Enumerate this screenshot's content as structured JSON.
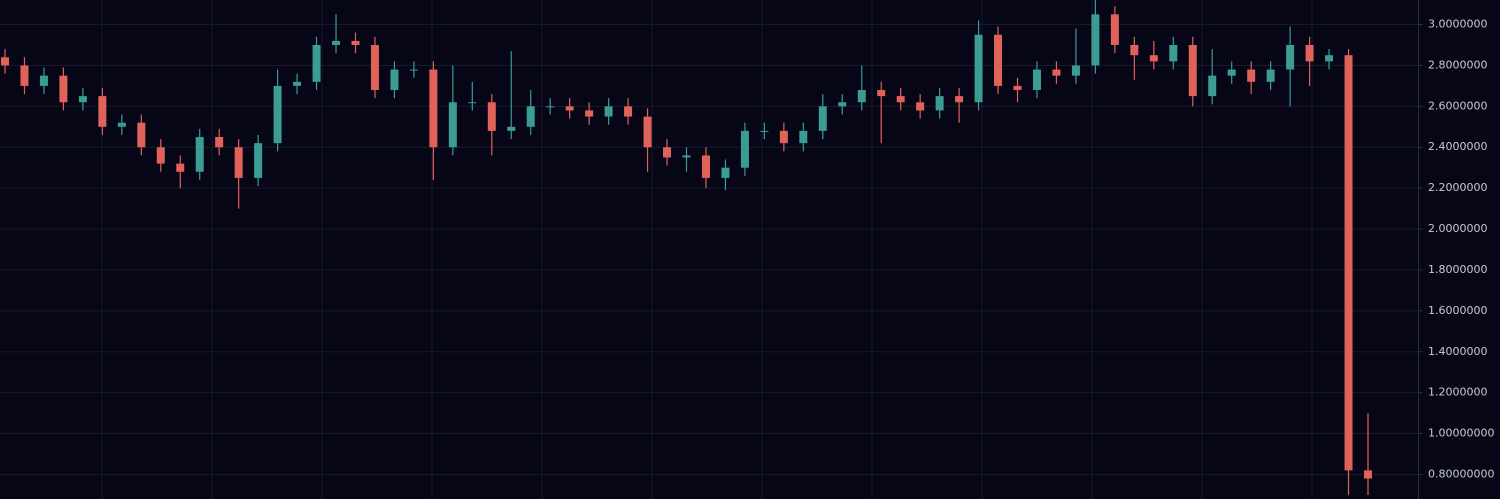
{
  "chart_data": {
    "type": "candlestick",
    "up_color": "#3b9c93",
    "down_color": "#e0625b",
    "grid": true,
    "ylim": [
      0.68,
      3.12
    ],
    "yticks": [
      {
        "value": 0.8,
        "label": "0.80000000"
      },
      {
        "value": 1.0,
        "label": "1.00000000"
      },
      {
        "value": 1.2,
        "label": "1.2000000"
      },
      {
        "value": 1.4,
        "label": "1.4000000"
      },
      {
        "value": 1.6,
        "label": "1.6000000"
      },
      {
        "value": 1.8,
        "label": "1.8000000"
      },
      {
        "value": 2.0,
        "label": "2.0000000"
      },
      {
        "value": 2.2,
        "label": "2.2000000"
      },
      {
        "value": 2.4,
        "label": "2.4000000"
      },
      {
        "value": 2.6,
        "label": "2.6000000"
      },
      {
        "value": 2.8,
        "label": "2.8000000"
      },
      {
        "value": 3.0,
        "label": "3.0000000"
      }
    ],
    "open": [
      2.84,
      2.8,
      2.7,
      2.75,
      2.62,
      2.65,
      2.5,
      2.52,
      2.4,
      2.32,
      2.28,
      2.45,
      2.4,
      2.25,
      2.42,
      2.7,
      2.72,
      2.9,
      2.92,
      2.9,
      2.68,
      2.78,
      2.78,
      2.4,
      2.62,
      2.62,
      2.48,
      2.5,
      2.6,
      2.6,
      2.58,
      2.55,
      2.6,
      2.55,
      2.4,
      2.35,
      2.36,
      2.25,
      2.3,
      2.48,
      2.48,
      2.42,
      2.48,
      2.6,
      2.62,
      2.68,
      2.65,
      2.62,
      2.58,
      2.65,
      2.62,
      2.95,
      2.7,
      2.68,
      2.78,
      2.75,
      2.8,
      3.05,
      2.9,
      2.85,
      2.82,
      2.9,
      2.65,
      2.75,
      2.78,
      2.72,
      2.78,
      2.9,
      2.82,
      2.85,
      0.82
    ],
    "high": [
      2.88,
      2.84,
      2.79,
      2.79,
      2.69,
      2.69,
      2.56,
      2.56,
      2.44,
      2.36,
      2.49,
      2.49,
      2.44,
      2.46,
      2.78,
      2.76,
      2.94,
      3.05,
      2.96,
      2.94,
      2.82,
      2.82,
      2.82,
      2.8,
      2.72,
      2.66,
      2.87,
      2.68,
      2.64,
      2.64,
      2.62,
      2.64,
      2.64,
      2.59,
      2.44,
      2.4,
      2.4,
      2.34,
      2.52,
      2.52,
      2.52,
      2.52,
      2.66,
      2.66,
      2.8,
      2.72,
      2.69,
      2.66,
      2.69,
      2.69,
      3.02,
      2.99,
      2.74,
      2.82,
      2.82,
      2.98,
      3.12,
      3.09,
      2.94,
      2.92,
      2.94,
      2.94,
      2.88,
      2.82,
      2.82,
      2.82,
      2.99,
      2.94,
      2.88,
      2.88,
      1.1
    ],
    "low": [
      2.76,
      2.66,
      2.66,
      2.58,
      2.58,
      2.46,
      2.46,
      2.36,
      2.28,
      2.2,
      2.24,
      2.36,
      2.1,
      2.21,
      2.38,
      2.66,
      2.68,
      2.86,
      2.86,
      2.64,
      2.64,
      2.74,
      2.24,
      2.36,
      2.58,
      2.36,
      2.44,
      2.46,
      2.56,
      2.54,
      2.51,
      2.51,
      2.51,
      2.28,
      2.31,
      2.28,
      2.2,
      2.19,
      2.26,
      2.44,
      2.38,
      2.38,
      2.44,
      2.56,
      2.58,
      2.42,
      2.58,
      2.54,
      2.54,
      2.52,
      2.58,
      2.66,
      2.62,
      2.64,
      2.71,
      2.71,
      2.76,
      2.86,
      2.73,
      2.78,
      2.78,
      2.6,
      2.61,
      2.71,
      2.66,
      2.68,
      2.6,
      2.7,
      2.78,
      0.7,
      0.7
    ],
    "close": [
      2.8,
      2.7,
      2.75,
      2.62,
      2.65,
      2.5,
      2.52,
      2.4,
      2.32,
      2.28,
      2.45,
      2.4,
      2.25,
      2.42,
      2.7,
      2.72,
      2.9,
      2.92,
      2.9,
      2.68,
      2.78,
      2.78,
      2.4,
      2.62,
      2.62,
      2.48,
      2.5,
      2.6,
      2.6,
      2.58,
      2.55,
      2.6,
      2.55,
      2.4,
      2.35,
      2.36,
      2.25,
      2.3,
      2.48,
      2.48,
      2.42,
      2.48,
      2.6,
      2.62,
      2.68,
      2.65,
      2.62,
      2.58,
      2.65,
      2.62,
      2.95,
      2.7,
      2.68,
      2.78,
      2.75,
      2.8,
      3.05,
      2.9,
      2.85,
      2.82,
      2.9,
      2.65,
      2.75,
      2.78,
      2.72,
      2.78,
      2.9,
      2.82,
      2.85,
      0.82,
      0.78
    ]
  }
}
